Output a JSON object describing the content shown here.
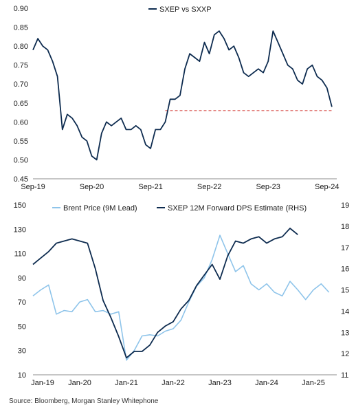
{
  "footer": {
    "source": "Source: Bloomberg, Morgan Stanley Whitephone"
  },
  "colors": {
    "dark_navy": "#0d2b4f",
    "light_blue": "#8ec4ea",
    "dashed_red": "#d9534f",
    "axis": "#8c8c8c"
  },
  "chart_data": [
    {
      "type": "line",
      "title": "",
      "legend": {
        "position": "top-center",
        "entries": [
          "SXEP vs SXXP"
        ]
      },
      "x_tick_labels": [
        "Sep-19",
        "Sep-20",
        "Sep-21",
        "Sep-22",
        "Sep-23",
        "Sep-24"
      ],
      "y_tick_labels": [
        "0.45",
        "0.50",
        "0.55",
        "0.60",
        "0.65",
        "0.70",
        "0.75",
        "0.80",
        "0.85",
        "0.90"
      ],
      "ylim": [
        0.45,
        0.9
      ],
      "xlim": [
        "2019-09",
        "2024-11"
      ],
      "grid": false,
      "series": [
        {
          "name": "SXEP vs SXXP",
          "color": "#0d2b4f",
          "x": [
            "2019-09",
            "2019-10",
            "2019-11",
            "2019-12",
            "2020-01",
            "2020-02",
            "2020-03",
            "2020-04",
            "2020-05",
            "2020-06",
            "2020-07",
            "2020-08",
            "2020-09",
            "2020-10",
            "2020-11",
            "2020-12",
            "2021-01",
            "2021-02",
            "2021-03",
            "2021-04",
            "2021-05",
            "2021-06",
            "2021-07",
            "2021-08",
            "2021-09",
            "2021-10",
            "2021-11",
            "2021-12",
            "2022-01",
            "2022-02",
            "2022-03",
            "2022-04",
            "2022-05",
            "2022-06",
            "2022-07",
            "2022-08",
            "2022-09",
            "2022-10",
            "2022-11",
            "2022-12",
            "2023-01",
            "2023-02",
            "2023-03",
            "2023-04",
            "2023-05",
            "2023-06",
            "2023-07",
            "2023-08",
            "2023-09",
            "2023-10",
            "2023-11",
            "2023-12",
            "2024-01",
            "2024-02",
            "2024-03",
            "2024-04",
            "2024-05",
            "2024-06",
            "2024-07",
            "2024-08",
            "2024-09",
            "2024-10"
          ],
          "y": [
            0.79,
            0.82,
            0.8,
            0.79,
            0.76,
            0.72,
            0.58,
            0.62,
            0.61,
            0.59,
            0.56,
            0.55,
            0.51,
            0.5,
            0.57,
            0.6,
            0.59,
            0.6,
            0.61,
            0.58,
            0.58,
            0.59,
            0.58,
            0.54,
            0.53,
            0.58,
            0.58,
            0.6,
            0.66,
            0.66,
            0.67,
            0.74,
            0.78,
            0.77,
            0.76,
            0.81,
            0.78,
            0.83,
            0.84,
            0.82,
            0.79,
            0.8,
            0.77,
            0.73,
            0.72,
            0.73,
            0.74,
            0.73,
            0.76,
            0.84,
            0.81,
            0.78,
            0.75,
            0.74,
            0.71,
            0.7,
            0.74,
            0.75,
            0.72,
            0.71,
            0.69,
            0.64
          ]
        }
      ],
      "annotations": [
        {
          "type": "dashed-line",
          "y": 0.63,
          "from": "2021-12",
          "to": "2024-10",
          "color": "#d9534f"
        }
      ]
    },
    {
      "type": "line",
      "title": "",
      "legend": {
        "position": "top-center",
        "entries": [
          "Brent Price (9M Lead)",
          "SXEP 12M Forward DPS Estimate (RHS)"
        ]
      },
      "x_tick_labels": [
        "Jan-19",
        "Jan-20",
        "Jan-21",
        "Jan-22",
        "Jan-23",
        "Jan-24",
        "Jan-25"
      ],
      "y_tick_labels_left": [
        "10",
        "30",
        "50",
        "70",
        "90",
        "110",
        "130",
        "150"
      ],
      "y_tick_labels_right": [
        "11",
        "12",
        "13",
        "14",
        "15",
        "16",
        "17",
        "18",
        "19"
      ],
      "ylim_left": [
        10,
        150
      ],
      "ylim_right": [
        11,
        19
      ],
      "xlim": [
        "2019-01",
        "2025-07"
      ],
      "grid": false,
      "series": [
        {
          "name": "Brent Price (9M Lead)",
          "axis": "left",
          "color": "#8ec4ea",
          "x": [
            "2019-01",
            "2019-03",
            "2019-05",
            "2019-07",
            "2019-09",
            "2019-11",
            "2020-01",
            "2020-03",
            "2020-05",
            "2020-07",
            "2020-09",
            "2020-11",
            "2021-01",
            "2021-03",
            "2021-05",
            "2021-07",
            "2021-09",
            "2021-11",
            "2022-01",
            "2022-03",
            "2022-05",
            "2022-07",
            "2022-09",
            "2022-11",
            "2023-01",
            "2023-03",
            "2023-05",
            "2023-07",
            "2023-09",
            "2023-11",
            "2024-01",
            "2024-03",
            "2024-05",
            "2024-07",
            "2024-09",
            "2024-11",
            "2025-01",
            "2025-03",
            "2025-05"
          ],
          "y": [
            75,
            80,
            84,
            60,
            63,
            62,
            70,
            72,
            62,
            63,
            60,
            62,
            22,
            30,
            42,
            43,
            42,
            46,
            48,
            55,
            70,
            83,
            90,
            105,
            125,
            110,
            95,
            100,
            85,
            80,
            85,
            78,
            75,
            87,
            80,
            72,
            80,
            85,
            78
          ]
        },
        {
          "name": "SXEP 12M Forward DPS Estimate (RHS)",
          "axis": "right",
          "color": "#0d2b4f",
          "x": [
            "2019-01",
            "2019-03",
            "2019-05",
            "2019-07",
            "2019-09",
            "2019-11",
            "2020-01",
            "2020-03",
            "2020-05",
            "2020-07",
            "2020-09",
            "2020-11",
            "2021-01",
            "2021-03",
            "2021-05",
            "2021-07",
            "2021-09",
            "2021-11",
            "2022-01",
            "2022-03",
            "2022-05",
            "2022-07",
            "2022-09",
            "2022-11",
            "2023-01",
            "2023-03",
            "2023-05",
            "2023-07",
            "2023-09",
            "2023-11",
            "2024-01",
            "2024-03",
            "2024-05",
            "2024-07",
            "2024-09"
          ],
          "y": [
            16.2,
            16.5,
            16.8,
            17.2,
            17.3,
            17.4,
            17.3,
            17.2,
            16.0,
            14.5,
            13.7,
            12.8,
            11.8,
            12.1,
            12.1,
            12.4,
            13.0,
            13.3,
            13.5,
            14.1,
            14.5,
            15.2,
            15.7,
            16.2,
            15.5,
            16.6,
            17.3,
            17.2,
            17.4,
            17.5,
            17.2,
            17.4,
            17.5,
            17.9,
            17.6
          ]
        }
      ]
    }
  ]
}
